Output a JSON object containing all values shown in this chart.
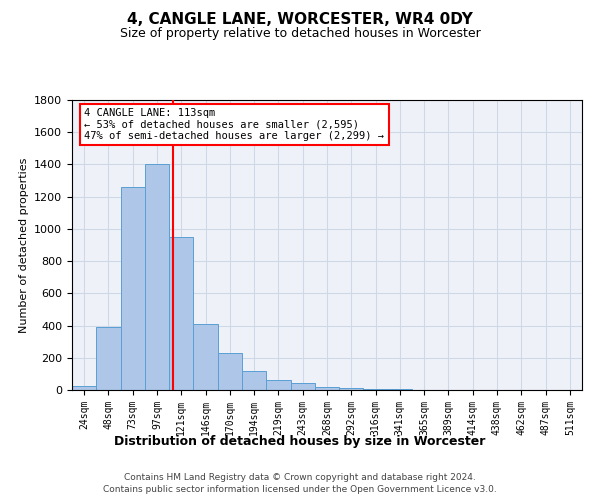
{
  "title": "4, CANGLE LANE, WORCESTER, WR4 0DY",
  "subtitle": "Size of property relative to detached houses in Worcester",
  "xlabel": "Distribution of detached houses by size in Worcester",
  "ylabel": "Number of detached properties",
  "bar_color": "#aec6e8",
  "bar_edge_color": "#5a9fd4",
  "categories": [
    "24sqm",
    "48sqm",
    "73sqm",
    "97sqm",
    "121sqm",
    "146sqm",
    "170sqm",
    "194sqm",
    "219sqm",
    "243sqm",
    "268sqm",
    "292sqm",
    "316sqm",
    "341sqm",
    "365sqm",
    "389sqm",
    "414sqm",
    "438sqm",
    "462sqm",
    "487sqm",
    "511sqm"
  ],
  "values": [
    25,
    390,
    1260,
    1400,
    950,
    410,
    230,
    120,
    65,
    42,
    18,
    15,
    8,
    5,
    3,
    2,
    1,
    0,
    0,
    0,
    0
  ],
  "ylim": [
    0,
    1800
  ],
  "yticks": [
    0,
    200,
    400,
    600,
    800,
    1000,
    1200,
    1400,
    1600,
    1800
  ],
  "grid_color": "#d0d8e8",
  "background_color": "#eef2f8",
  "annotation_box_text": "4 CANGLE LANE: 113sqm\n← 53% of detached houses are smaller (2,595)\n47% of semi-detached houses are larger (2,299) →",
  "footer_line1": "Contains HM Land Registry data © Crown copyright and database right 2024.",
  "footer_line2": "Contains public sector information licensed under the Open Government Licence v3.0."
}
